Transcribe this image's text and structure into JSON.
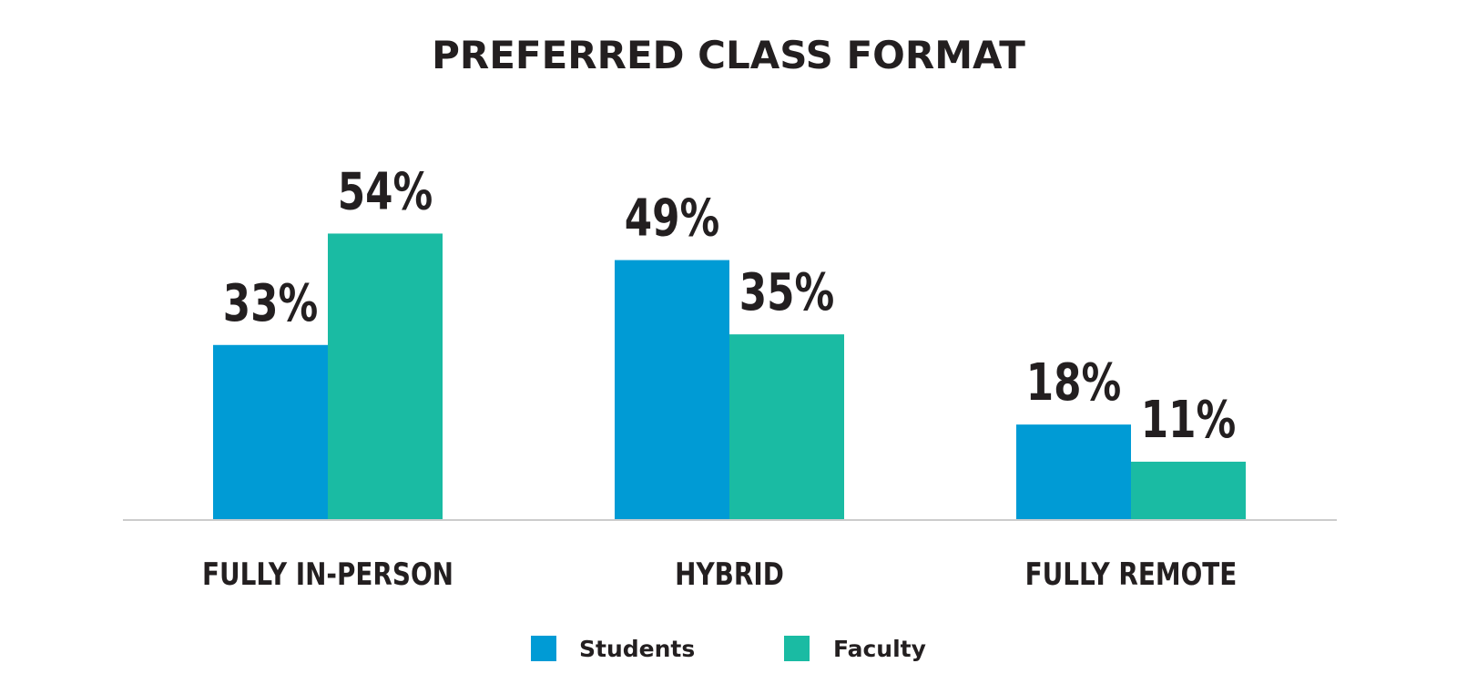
{
  "chart_data": {
    "type": "bar",
    "title": "PREFERRED CLASS FORMAT",
    "categories": [
      "FULLY IN-PERSON",
      "HYBRID",
      "FULLY REMOTE"
    ],
    "series": [
      {
        "name": "Students",
        "color": "#009bd5",
        "values": [
          33,
          49,
          18
        ],
        "labels": [
          "33%",
          "49%",
          "18%"
        ]
      },
      {
        "name": "Faculty",
        "color": "#1abba3",
        "values": [
          54,
          35,
          11
        ],
        "labels": [
          "54%",
          "35%",
          "11%"
        ]
      }
    ],
    "ylim": [
      0,
      100
    ],
    "grid": false,
    "legend": "bottom-center",
    "xlabel": "",
    "ylabel": ""
  }
}
